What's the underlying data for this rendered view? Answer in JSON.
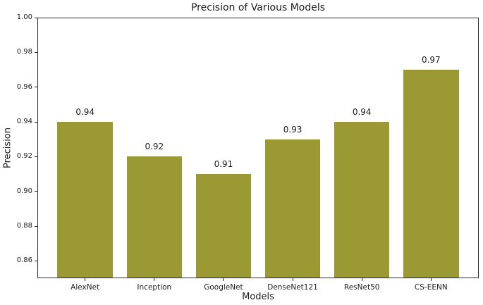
{
  "chart_data": {
    "type": "bar",
    "title": "Precision of Various Models",
    "xlabel": "Models",
    "ylabel": "Precision",
    "categories": [
      "AlexNet",
      "Inception",
      "GoogleNet",
      "DenseNet121",
      "ResNet50",
      "CS-EENN"
    ],
    "values": [
      0.94,
      0.92,
      0.91,
      0.93,
      0.94,
      0.97
    ],
    "bar_labels": [
      "0.94",
      "0.92",
      "0.91",
      "0.93",
      "0.94",
      "0.97"
    ],
    "ylim": [
      0.85,
      1.0
    ],
    "yticks": [
      0.86,
      0.88,
      0.9,
      0.92,
      0.94,
      0.96,
      0.98,
      1.0
    ],
    "ytick_format_decimals": 2,
    "grid": false,
    "legend_position": "none",
    "bar_color": "#9a9933",
    "text_color": "#1c1c1c",
    "spine_color": "#2a2a2a",
    "background_color": "#ffffff"
  }
}
